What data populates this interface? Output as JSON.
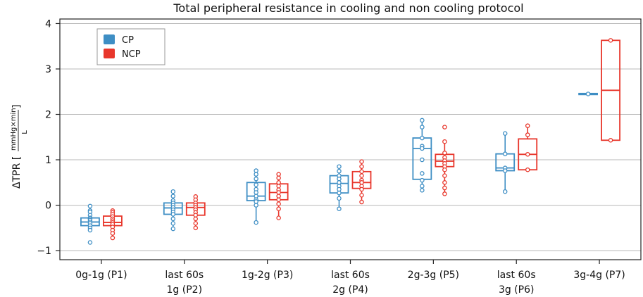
{
  "chart_data": {
    "type": "box",
    "title": "Total peripheral resistance in cooling and non cooling protocol",
    "xlabel": "",
    "ylabel": {
      "prefix": "ΔTPR [",
      "fraction_numerator": "mmHg×min",
      "fraction_denominator": "L",
      "suffix": "]"
    },
    "ylim": [
      -1.2,
      4.1
    ],
    "yticks": [
      -1,
      0,
      1,
      2,
      3,
      4
    ],
    "grid": true,
    "legend_position": "top-left",
    "categories": [
      [
        "0g-1g (P1)"
      ],
      [
        "last 60s",
        "1g (P2)"
      ],
      [
        "1g-2g (P3)"
      ],
      [
        "last 60s",
        "2g (P4)"
      ],
      [
        "2g-3g (P5)"
      ],
      [
        "last 60s",
        "3g (P6)"
      ],
      [
        "3g-4g (P7)"
      ]
    ],
    "series": [
      {
        "name": "CP",
        "color": "#3e8ec4",
        "boxes": [
          {
            "q1": -0.45,
            "median": -0.37,
            "q3": -0.28,
            "whisker_low": -0.55,
            "whisker_high": -0.15,
            "points": [
              -0.02,
              -0.12,
              -0.15,
              -0.22,
              -0.28,
              -0.3,
              -0.33,
              -0.37,
              -0.4,
              -0.45,
              -0.5,
              -0.55,
              -0.82
            ]
          },
          {
            "q1": -0.2,
            "median": -0.06,
            "q3": 0.05,
            "whisker_low": -0.52,
            "whisker_high": 0.3,
            "points": [
              0.3,
              0.2,
              0.1,
              0.05,
              0.0,
              -0.05,
              -0.1,
              -0.15,
              -0.2,
              -0.3,
              -0.4,
              -0.52
            ]
          },
          {
            "q1": 0.1,
            "median": 0.2,
            "q3": 0.5,
            "whisker_low": -0.38,
            "whisker_high": 0.76,
            "points": [
              0.76,
              0.68,
              0.58,
              0.45,
              0.35,
              0.28,
              0.2,
              0.12,
              0.08,
              0.0,
              -0.38
            ]
          },
          {
            "q1": 0.27,
            "median": 0.48,
            "q3": 0.65,
            "whisker_low": -0.08,
            "whisker_high": 0.85,
            "points": [
              0.85,
              0.75,
              0.65,
              0.58,
              0.5,
              0.42,
              0.35,
              0.27,
              0.15,
              -0.08
            ]
          },
          {
            "q1": 0.57,
            "median": 1.25,
            "q3": 1.48,
            "whisker_low": 0.33,
            "whisker_high": 1.87,
            "points": [
              1.87,
              1.72,
              1.48,
              1.3,
              1.25,
              1.0,
              0.7,
              0.55,
              0.42,
              0.33
            ]
          },
          {
            "q1": 0.76,
            "median": 0.82,
            "q3": 1.13,
            "whisker_low": 0.3,
            "whisker_high": 1.58,
            "points": [
              1.58,
              1.13,
              0.82,
              0.76,
              0.3
            ]
          },
          {
            "q1": 2.44,
            "median": 2.45,
            "q3": 2.46,
            "whisker_low": 2.44,
            "whisker_high": 2.46,
            "points": [
              2.45
            ]
          }
        ]
      },
      {
        "name": "NCP",
        "color": "#e8362b",
        "boxes": [
          {
            "q1": -0.45,
            "median": -0.38,
            "q3": -0.24,
            "whisker_low": -0.72,
            "whisker_high": -0.12,
            "points": [
              -0.12,
              -0.16,
              -0.2,
              -0.25,
              -0.3,
              -0.34,
              -0.38,
              -0.42,
              -0.48,
              -0.55,
              -0.62,
              -0.72
            ]
          },
          {
            "q1": -0.22,
            "median": -0.05,
            "q3": 0.05,
            "whisker_low": -0.5,
            "whisker_high": 0.19,
            "points": [
              0.19,
              0.12,
              0.05,
              0.0,
              -0.05,
              -0.1,
              -0.16,
              -0.22,
              -0.3,
              -0.4,
              -0.5
            ]
          },
          {
            "q1": 0.12,
            "median": 0.28,
            "q3": 0.47,
            "whisker_low": -0.28,
            "whisker_high": 0.68,
            "points": [
              0.68,
              0.6,
              0.5,
              0.42,
              0.34,
              0.28,
              0.2,
              0.12,
              0.03,
              -0.08,
              -0.28
            ]
          },
          {
            "q1": 0.37,
            "median": 0.5,
            "q3": 0.74,
            "whisker_low": 0.07,
            "whisker_high": 0.96,
            "points": [
              0.96,
              0.85,
              0.74,
              0.65,
              0.55,
              0.5,
              0.42,
              0.35,
              0.22,
              0.07
            ]
          },
          {
            "q1": 0.85,
            "median": 0.97,
            "q3": 1.12,
            "whisker_low": 0.25,
            "whisker_high": 1.4,
            "points": [
              1.72,
              1.4,
              1.15,
              1.05,
              0.98,
              0.92,
              0.85,
              0.78,
              0.65,
              0.5,
              0.38,
              0.25
            ]
          },
          {
            "q1": 0.78,
            "median": 1.12,
            "q3": 1.46,
            "whisker_low": 0.78,
            "whisker_high": 1.75,
            "points": [
              1.75,
              1.55,
              1.12,
              0.78
            ]
          },
          {
            "q1": 1.43,
            "median": 2.53,
            "q3": 3.63,
            "whisker_low": 1.43,
            "whisker_high": 3.63,
            "points": [
              3.63,
              1.43
            ]
          }
        ]
      }
    ]
  }
}
